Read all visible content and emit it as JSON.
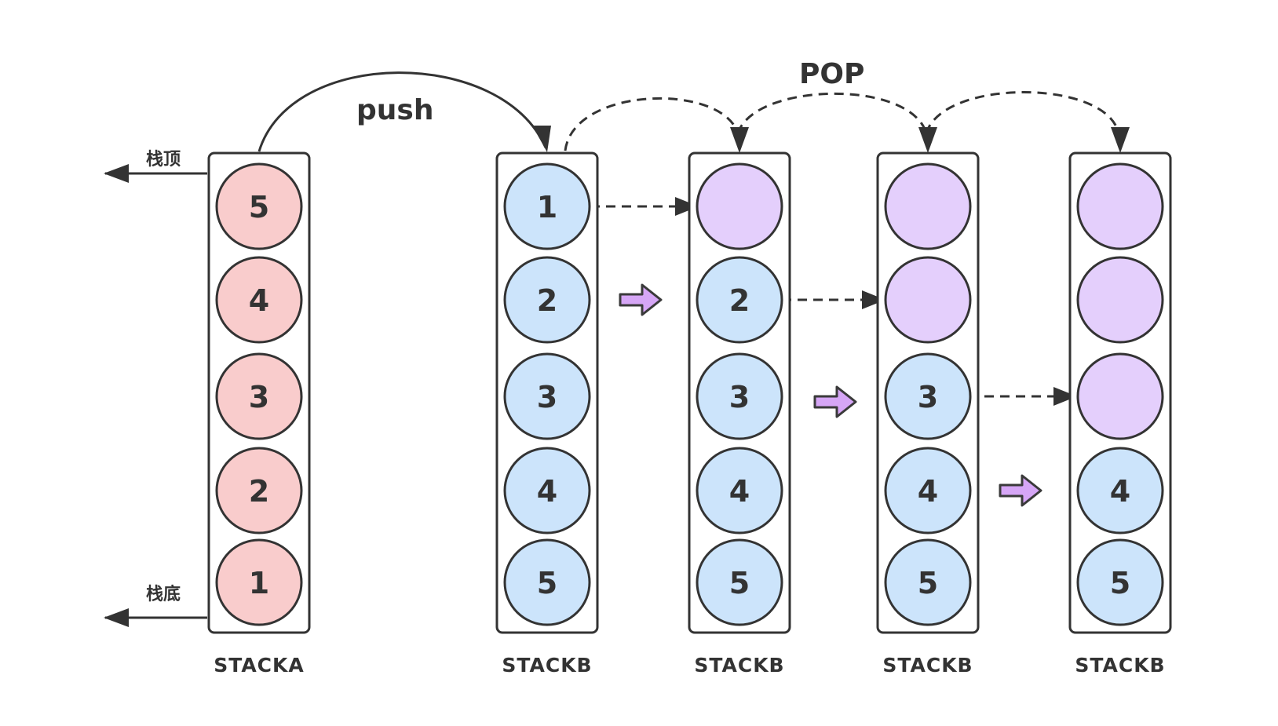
{
  "labels": {
    "push": "push",
    "pop": "POP",
    "stack_top": "栈顶",
    "stack_bottom": "栈底"
  },
  "colors": {
    "stroke": "#333333",
    "pink": "#f9cccc",
    "blue": "#cce4fb",
    "purple": "#e4cffc",
    "arrow_fill": "#d6a6f6",
    "arrow_stroke": "#3a3a3a"
  },
  "stacks": [
    {
      "label": "STACKA",
      "balls": [
        {
          "value": "5",
          "color": "pink"
        },
        {
          "value": "4",
          "color": "pink"
        },
        {
          "value": "3",
          "color": "pink"
        },
        {
          "value": "2",
          "color": "pink"
        },
        {
          "value": "1",
          "color": "pink"
        }
      ]
    },
    {
      "label": "STACKB",
      "balls": [
        {
          "value": "1",
          "color": "blue"
        },
        {
          "value": "2",
          "color": "blue"
        },
        {
          "value": "3",
          "color": "blue"
        },
        {
          "value": "4",
          "color": "blue"
        },
        {
          "value": "5",
          "color": "blue"
        }
      ]
    },
    {
      "label": "STACKB",
      "balls": [
        {
          "value": "",
          "color": "purple"
        },
        {
          "value": "2",
          "color": "blue"
        },
        {
          "value": "3",
          "color": "blue"
        },
        {
          "value": "4",
          "color": "blue"
        },
        {
          "value": "5",
          "color": "blue"
        }
      ]
    },
    {
      "label": "STACKB",
      "balls": [
        {
          "value": "",
          "color": "purple"
        },
        {
          "value": "",
          "color": "purple"
        },
        {
          "value": "3",
          "color": "blue"
        },
        {
          "value": "4",
          "color": "blue"
        },
        {
          "value": "5",
          "color": "blue"
        }
      ]
    },
    {
      "label": "STACKB",
      "balls": [
        {
          "value": "",
          "color": "purple"
        },
        {
          "value": "",
          "color": "purple"
        },
        {
          "value": "",
          "color": "purple"
        },
        {
          "value": "4",
          "color": "blue"
        },
        {
          "value": "5",
          "color": "blue"
        }
      ]
    }
  ]
}
